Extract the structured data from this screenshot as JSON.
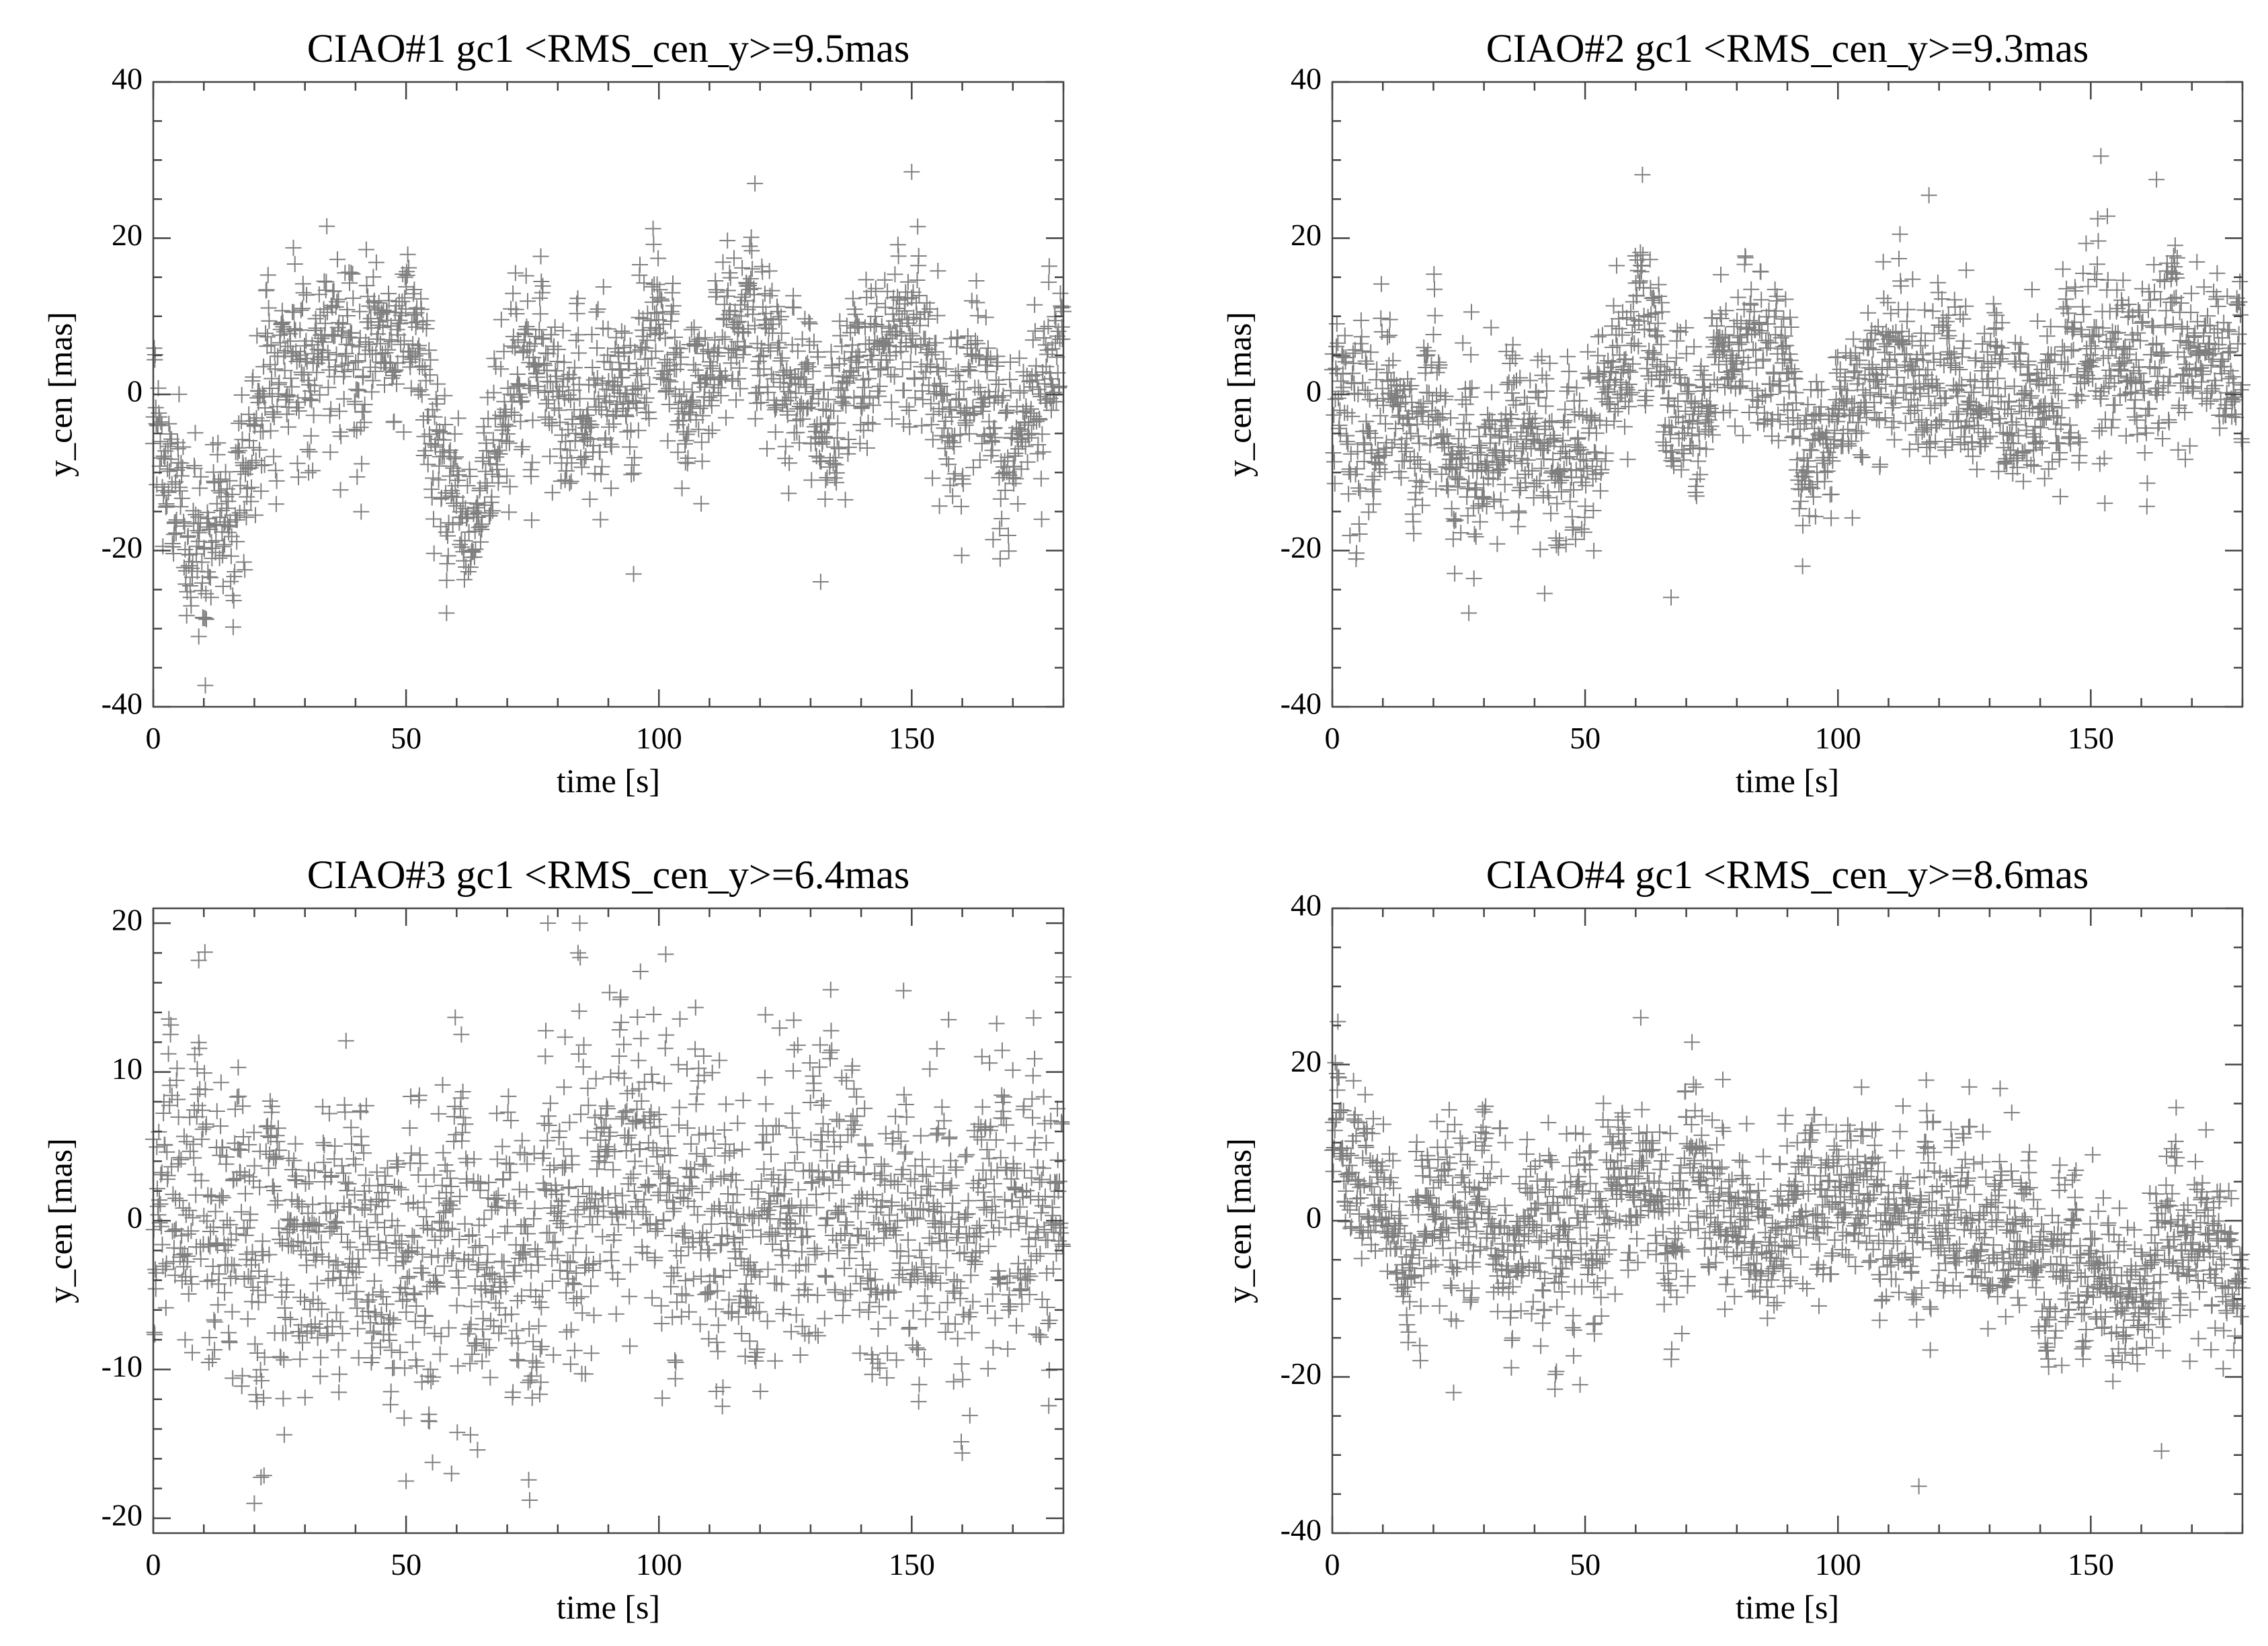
{
  "figure": {
    "panel_count": 4
  },
  "chart_data": [
    {
      "type": "scatter",
      "title": "CIAO#1 gc1 <RMS_cen_y>=9.5mas",
      "xlabel": "time [s]",
      "ylabel": "y_cen [mas]",
      "xlim": [
        0,
        180
      ],
      "ylim": [
        -40,
        40
      ],
      "xticks": [
        0,
        50,
        100,
        150
      ],
      "yticks": [
        -40,
        -20,
        0,
        20,
        40
      ],
      "xminor": 10,
      "yminor": 5,
      "marker": "plus",
      "n_points": 1800,
      "trend": [
        [
          0,
          -3
        ],
        [
          3,
          -12
        ],
        [
          7,
          -20
        ],
        [
          12,
          -16
        ],
        [
          18,
          -10
        ],
        [
          22,
          2
        ],
        [
          30,
          6
        ],
        [
          40,
          2
        ],
        [
          45,
          8
        ],
        [
          52,
          5
        ],
        [
          58,
          -12
        ],
        [
          63,
          -14
        ],
        [
          68,
          -6
        ],
        [
          72,
          4
        ],
        [
          80,
          2
        ],
        [
          88,
          -3
        ],
        [
          95,
          2
        ],
        [
          100,
          8
        ],
        [
          107,
          -2
        ],
        [
          112,
          4
        ],
        [
          118,
          12
        ],
        [
          122,
          6
        ],
        [
          127,
          -2
        ],
        [
          133,
          -1
        ],
        [
          140,
          6
        ],
        [
          147,
          10
        ],
        [
          152,
          8
        ],
        [
          160,
          -2
        ],
        [
          168,
          -6
        ],
        [
          175,
          2
        ],
        [
          180,
          8
        ]
      ],
      "scatter_sd": 6,
      "outliers": [
        [
          150,
          28.5
        ],
        [
          119,
          27
        ],
        [
          58,
          -28
        ],
        [
          9,
          -31
        ],
        [
          132,
          -24
        ],
        [
          95,
          -23
        ]
      ]
    },
    {
      "type": "scatter",
      "title": "CIAO#2 gc1 <RMS_cen_y>=9.3mas",
      "xlabel": "time [s]",
      "ylabel": "y_cen [mas]",
      "xlim": [
        0,
        180
      ],
      "ylim": [
        -40,
        40
      ],
      "xticks": [
        0,
        50,
        100,
        150
      ],
      "yticks": [
        -40,
        -20,
        0,
        20,
        40
      ],
      "xminor": 10,
      "yminor": 5,
      "marker": "plus",
      "n_points": 1800,
      "trend": [
        [
          0,
          -2
        ],
        [
          5,
          -6
        ],
        [
          10,
          2
        ],
        [
          15,
          -4
        ],
        [
          20,
          -2
        ],
        [
          25,
          -12
        ],
        [
          30,
          -10
        ],
        [
          38,
          -2
        ],
        [
          45,
          -12
        ],
        [
          50,
          -8
        ],
        [
          55,
          2
        ],
        [
          62,
          10
        ],
        [
          68,
          -4
        ],
        [
          75,
          -2
        ],
        [
          80,
          6
        ],
        [
          88,
          8
        ],
        [
          93,
          -10
        ],
        [
          98,
          -4
        ],
        [
          105,
          2
        ],
        [
          112,
          6
        ],
        [
          118,
          2
        ],
        [
          125,
          4
        ],
        [
          133,
          0
        ],
        [
          140,
          -2
        ],
        [
          150,
          6
        ],
        [
          160,
          2
        ],
        [
          165,
          10
        ],
        [
          172,
          4
        ],
        [
          180,
          2
        ]
      ],
      "scatter_sd": 6,
      "outliers": [
        [
          152,
          30.5
        ],
        [
          118,
          25.5
        ],
        [
          163,
          27.5
        ],
        [
          27,
          -28
        ],
        [
          42,
          -25.5
        ],
        [
          67,
          -26
        ],
        [
          93,
          -22
        ]
      ]
    },
    {
      "type": "scatter",
      "title": "CIAO#3 gc1 <RMS_cen_y>=6.4mas",
      "xlabel": "time [s]",
      "ylabel": "y_cen [mas]",
      "xlim": [
        0,
        180
      ],
      "ylim": [
        -21,
        21
      ],
      "xticks": [
        0,
        50,
        100,
        150
      ],
      "yticks": [
        -20,
        -10,
        0,
        10,
        20
      ],
      "xminor": 10,
      "yminor": 2,
      "marker": "plus",
      "n_points": 1800,
      "trend": [
        [
          0,
          2
        ],
        [
          10,
          -2
        ],
        [
          20,
          -1
        ],
        [
          30,
          -3
        ],
        [
          40,
          -1
        ],
        [
          50,
          -3
        ],
        [
          60,
          -2
        ],
        [
          70,
          -3
        ],
        [
          80,
          0
        ],
        [
          88,
          3
        ],
        [
          95,
          4
        ],
        [
          100,
          2
        ],
        [
          110,
          -1
        ],
        [
          120,
          1
        ],
        [
          130,
          0
        ],
        [
          140,
          0
        ],
        [
          150,
          1
        ],
        [
          160,
          -2
        ],
        [
          170,
          -1
        ],
        [
          180,
          -1
        ]
      ],
      "scatter_sd": 5.5,
      "outliers": [
        [
          84,
          18
        ],
        [
          9,
          17.5
        ],
        [
          50,
          -17.5
        ],
        [
          20,
          -19
        ],
        [
          59,
          -17
        ]
      ]
    },
    {
      "type": "scatter",
      "title": "CIAO#4 gc1 <RMS_cen_y>=8.6mas",
      "xlabel": "time [s]",
      "ylabel": "y_cen [mas]",
      "xlim": [
        0,
        180
      ],
      "ylim": [
        -40,
        40
      ],
      "xticks": [
        0,
        50,
        100,
        150
      ],
      "yticks": [
        -40,
        -20,
        0,
        20,
        40
      ],
      "xminor": 10,
      "yminor": 5,
      "marker": "plus",
      "n_points": 1800,
      "trend": [
        [
          0,
          8
        ],
        [
          5,
          6
        ],
        [
          10,
          2
        ],
        [
          15,
          -4
        ],
        [
          20,
          2
        ],
        [
          30,
          0
        ],
        [
          40,
          -2
        ],
        [
          45,
          -4
        ],
        [
          52,
          2
        ],
        [
          58,
          4
        ],
        [
          65,
          0
        ],
        [
          72,
          4
        ],
        [
          80,
          2
        ],
        [
          88,
          -4
        ],
        [
          95,
          4
        ],
        [
          100,
          6
        ],
        [
          108,
          -2
        ],
        [
          115,
          -4
        ],
        [
          125,
          0
        ],
        [
          132,
          -4
        ],
        [
          140,
          -6
        ],
        [
          148,
          -8
        ],
        [
          155,
          -10
        ],
        [
          162,
          -6
        ],
        [
          165,
          2
        ],
        [
          170,
          -4
        ],
        [
          180,
          -4
        ]
      ],
      "scatter_sd": 6,
      "outliers": [
        [
          61,
          26
        ],
        [
          116,
          -34
        ],
        [
          164,
          -29.5
        ],
        [
          24,
          -22
        ],
        [
          49,
          -21
        ]
      ]
    }
  ]
}
